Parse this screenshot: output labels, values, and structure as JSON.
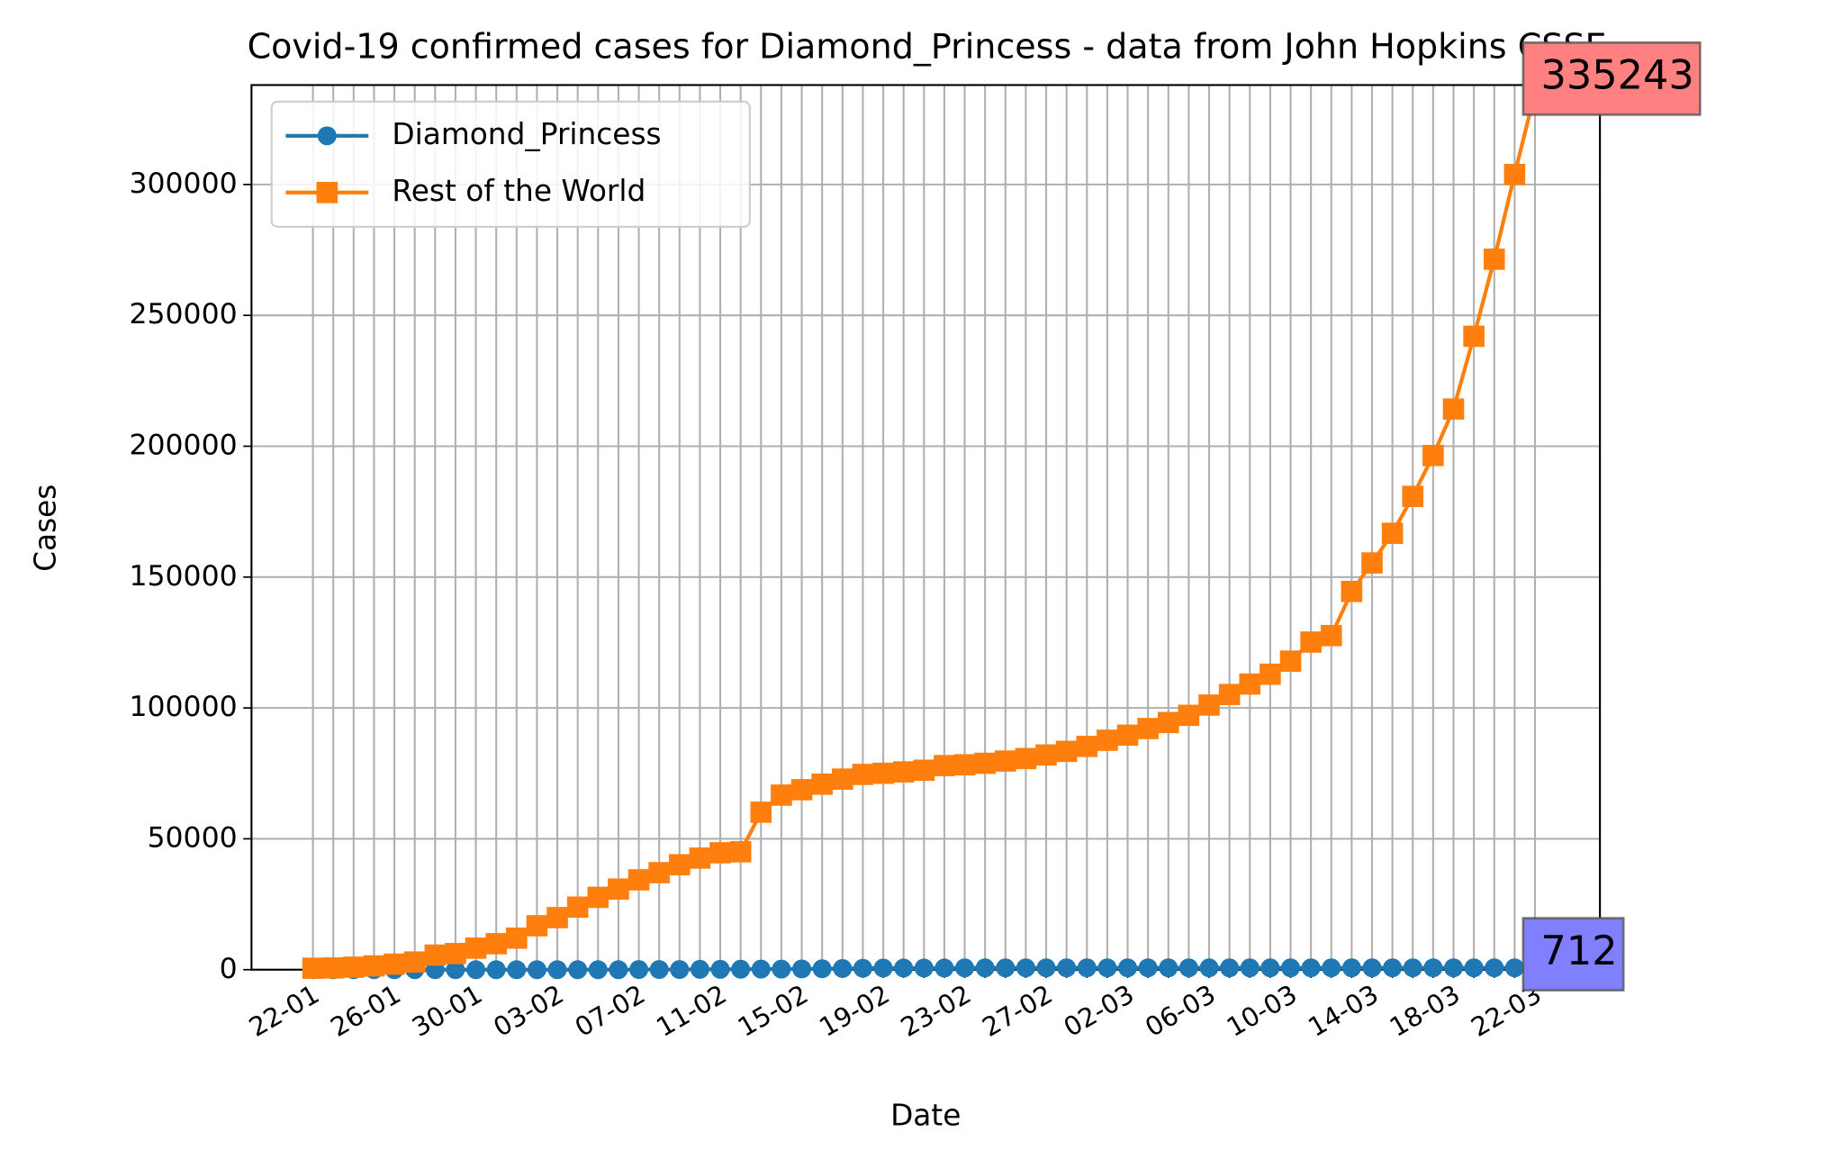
{
  "chart_data": {
    "type": "line",
    "title": "Covid-19 confirmed cases for Diamond_Princess - data from John Hopkins CSSE",
    "x_label": "Date",
    "y_label": "Cases",
    "categories": [
      "22-01",
      null,
      null,
      null,
      "26-01",
      null,
      null,
      null,
      "30-01",
      null,
      null,
      null,
      "03-02",
      null,
      null,
      null,
      "07-02",
      null,
      null,
      null,
      "11-02",
      null,
      null,
      null,
      "15-02",
      null,
      null,
      null,
      "19-02",
      null,
      null,
      null,
      "23-02",
      null,
      null,
      null,
      "27-02",
      null,
      null,
      null,
      "02-03",
      null,
      null,
      null,
      "06-03",
      null,
      null,
      null,
      "10-03",
      null,
      null,
      null,
      "14-03",
      null,
      null,
      null,
      "18-03",
      null,
      null,
      null,
      "22-03"
    ],
    "series": [
      {
        "name": "Diamond_Princess",
        "color": "#1f77b4",
        "marker": "circle",
        "values": [
          0,
          0,
          0,
          0,
          0,
          0,
          0,
          0,
          0,
          0,
          0,
          0,
          0,
          0,
          0,
          0,
          61,
          64,
          70,
          135,
          135,
          175,
          218,
          218,
          285,
          355,
          454,
          542,
          621,
          634,
          634,
          634,
          691,
          691,
          691,
          705,
          705,
          705,
          705,
          705,
          705,
          706,
          706,
          706,
          696,
          696,
          696,
          696,
          696,
          696,
          696,
          696,
          696,
          712,
          712,
          712,
          712,
          712,
          712,
          712,
          712
        ],
        "annotation": {
          "text": "712",
          "color": "#8080ff"
        }
      },
      {
        "name": "Rest of the World",
        "color": "#ff7f0e",
        "marker": "square",
        "values": [
          555,
          654,
          941,
          1434,
          2118,
          2927,
          5578,
          6166,
          8234,
          9927,
          12038,
          16787,
          19887,
          23898,
          27643,
          30802,
          34334,
          37065,
          40089,
          42633,
          44675,
          45053,
          60163,
          66690,
          68767,
          70880,
          72816,
          74610,
          75032,
          75579,
          76207,
          77968,
          78291,
          78855,
          79708,
          80671,
          82031,
          83415,
          85306,
          87666,
          89604,
          92138,
          94418,
          97180,
          101104,
          105140,
          109139,
          112886,
          117886,
          125169,
          127647,
          144497,
          155401,
          166737,
          180834,
          196456,
          214203,
          242001,
          271455,
          303816,
          335243
        ],
        "annotation": {
          "text": "335243",
          "color": "#ff8080"
        }
      }
    ],
    "ylim": [
      0,
      338000
    ],
    "yticks": [
      0,
      50000,
      100000,
      150000,
      200000,
      250000,
      300000
    ],
    "grid": true,
    "legend": "upper left"
  }
}
